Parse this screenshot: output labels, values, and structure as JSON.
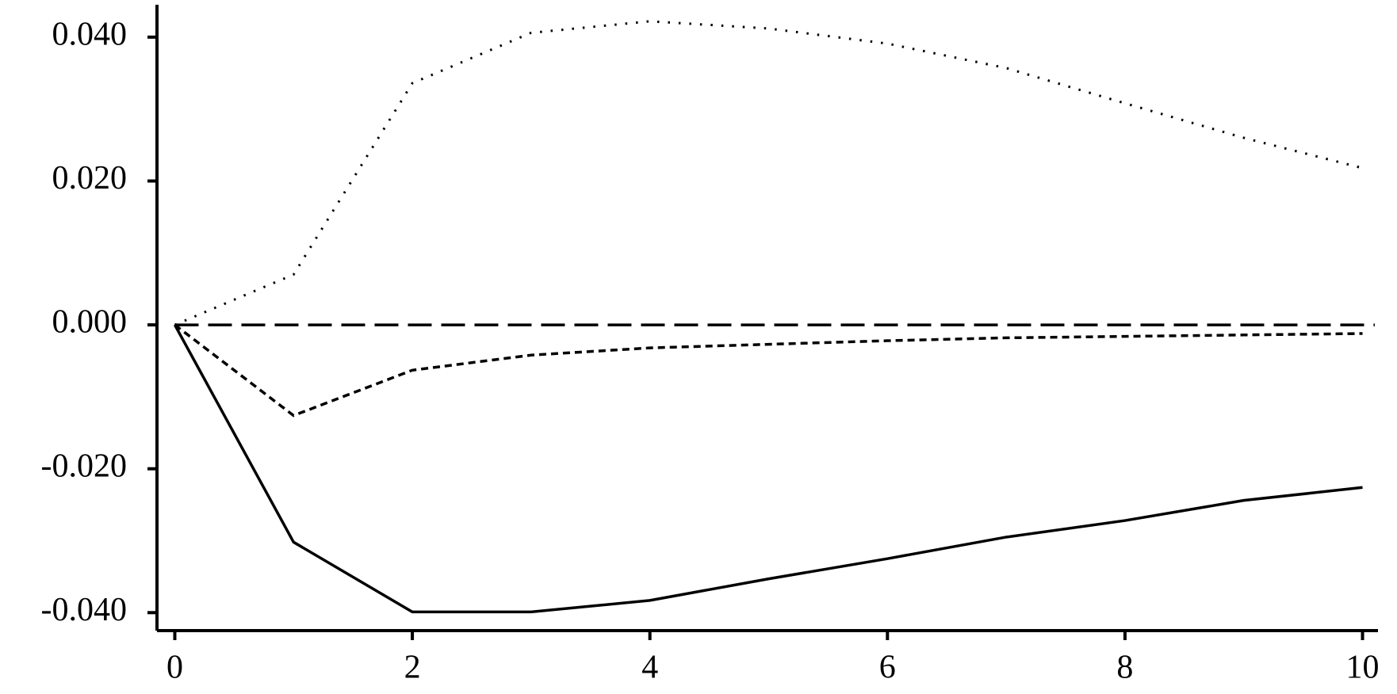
{
  "chart_data": {
    "type": "line",
    "x": [
      0,
      1,
      2,
      3,
      4,
      5,
      6,
      7,
      8,
      9,
      10
    ],
    "series": [
      {
        "color": "#000000",
        "dash": "solid",
        "values": [
          0,
          -0.0302,
          -0.0399,
          -0.0399,
          -0.0383,
          -0.0353,
          -0.0325,
          -0.0295,
          -0.0272,
          -0.0244,
          -0.0226
        ]
      },
      {
        "color": "#000000",
        "dash": "dashed",
        "values": [
          0,
          -0.0126,
          -0.0063,
          -0.0042,
          -0.0032,
          -0.0027,
          -0.0022,
          -0.0018,
          -0.0016,
          -0.0014,
          -0.0012
        ]
      },
      {
        "color": "#000000",
        "dash": "dotted",
        "values": [
          0,
          0.007,
          0.0336,
          0.0406,
          0.0422,
          0.0412,
          0.0391,
          0.0357,
          0.0308,
          0.026,
          0.0218
        ]
      }
    ],
    "hline": 0,
    "xlim": [
      -0.15,
      10.13
    ],
    "ylim": [
      -0.0425,
      0.0445
    ],
    "xticks": [
      0,
      2,
      4,
      6,
      8,
      10
    ],
    "yticks": [
      {
        "value": 0.04,
        "label": "0.040"
      },
      {
        "value": 0.02,
        "label": "0.020"
      },
      {
        "value": 0,
        "label": "0.000"
      },
      {
        "value": -0.02,
        "label": "-0.020"
      },
      {
        "value": -0.04,
        "label": "-0.040"
      }
    ],
    "grid": false
  }
}
